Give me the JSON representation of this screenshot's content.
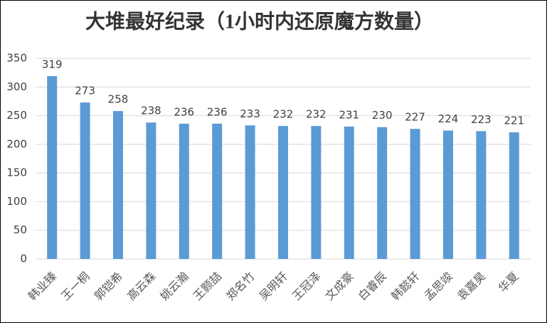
{
  "chart_data": {
    "type": "bar",
    "title": "大堆最好纪录（1小时内还原魔方数量）",
    "categories": [
      "韩业臻",
      "王一桐",
      "郭铠希",
      "高云森",
      "姚云瀚",
      "王颢喆",
      "郑名竹",
      "吴明轩",
      "王冠泽",
      "文成豪",
      "白睿辰",
      "韩懿轩",
      "孟思竣",
      "袁嘉昊",
      "华夏"
    ],
    "values": [
      319,
      273,
      258,
      238,
      236,
      236,
      233,
      232,
      232,
      231,
      230,
      227,
      224,
      223,
      221
    ],
    "color": "#5b9bd5",
    "ylim": [
      0,
      350
    ],
    "yticks": [
      0,
      50,
      100,
      150,
      200,
      250,
      300,
      350
    ],
    "grid": true
  }
}
